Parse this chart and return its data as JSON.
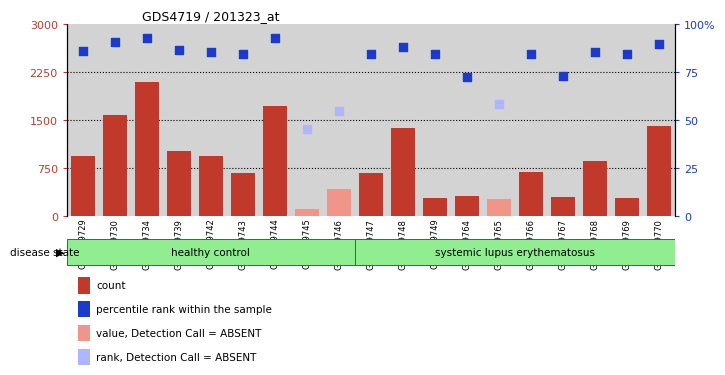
{
  "title": "GDS4719 / 201323_at",
  "samples": [
    "GSM349729",
    "GSM349730",
    "GSM349734",
    "GSM349739",
    "GSM349742",
    "GSM349743",
    "GSM349744",
    "GSM349745",
    "GSM349746",
    "GSM349747",
    "GSM349748",
    "GSM349749",
    "GSM349764",
    "GSM349765",
    "GSM349766",
    "GSM349767",
    "GSM349768",
    "GSM349769",
    "GSM349770"
  ],
  "count_values": [
    950,
    1580,
    2100,
    1020,
    950,
    680,
    1720,
    null,
    null,
    680,
    1380,
    280,
    320,
    null,
    700,
    310,
    870,
    290,
    1420
  ],
  "count_absent": [
    null,
    null,
    null,
    null,
    null,
    null,
    null,
    120,
    430,
    null,
    null,
    null,
    null,
    270,
    null,
    null,
    null,
    null,
    null
  ],
  "rank_values": [
    2580,
    2730,
    2790,
    2600,
    2570,
    2530,
    2790,
    null,
    null,
    2530,
    2640,
    2530,
    2180,
    null,
    2530,
    2200,
    2570,
    2540,
    2690
  ],
  "rank_absent": [
    null,
    null,
    null,
    null,
    null,
    null,
    null,
    1370,
    1640,
    null,
    null,
    null,
    null,
    1760,
    null,
    null,
    null,
    null,
    null
  ],
  "healthy_count": 9,
  "ylim_left": [
    0,
    3000
  ],
  "ylim_right": [
    0,
    100
  ],
  "yticks_left": [
    0,
    750,
    1500,
    2250,
    3000
  ],
  "yticks_right": [
    0,
    25,
    50,
    75,
    100
  ],
  "bar_color": "#C0392B",
  "bar_absent_color": "#F1948A",
  "dot_color": "#1A3BCC",
  "dot_absent_color": "#AEB6FF",
  "sample_bg": "#D3D3D3",
  "legend_items": [
    "count",
    "percentile rank within the sample",
    "value, Detection Call = ABSENT",
    "rank, Detection Call = ABSENT"
  ],
  "legend_colors": [
    "#C0392B",
    "#1A3BCC",
    "#F1948A",
    "#AEB6FF"
  ]
}
